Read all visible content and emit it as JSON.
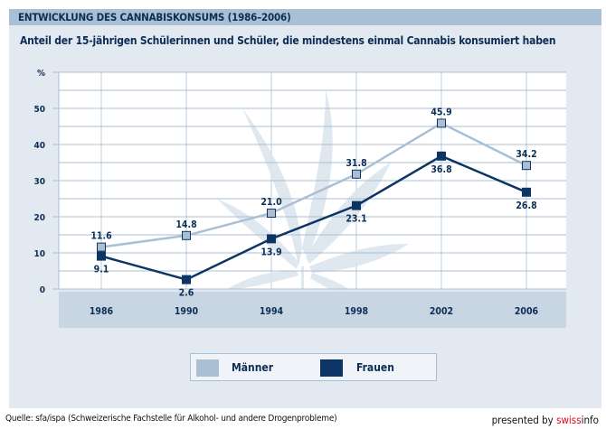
{
  "header": {
    "title": "ENTWICKLUNG DES CANNABISKONSUMS (1986–2006)",
    "subtitle": "Anteil der 15-jährigen Schülerinnen und Schüler, die mindestens einmal Cannabis konsumiert haben"
  },
  "chart_data": {
    "type": "line",
    "title": "ENTWICKLUNG DES CANNABISKONSUMS (1986–2006)",
    "subtitle": "Anteil der 15-jährigen Schülerinnen und Schüler, die mindestens einmal Cannabis konsumiert haben",
    "xlabel": "",
    "ylabel": "%",
    "categories": [
      "1986",
      "1990",
      "1994",
      "1998",
      "2002",
      "2006"
    ],
    "ylim": [
      0,
      60
    ],
    "yticks": [
      0,
      10,
      20,
      30,
      40,
      50
    ],
    "grid": true,
    "legend_position": "bottom-center",
    "series": [
      {
        "name": "Männer",
        "color": "#a9bfd4",
        "values": [
          11.6,
          14.8,
          21.0,
          31.8,
          45.9,
          34.2
        ],
        "labels": [
          "11.6",
          "14.8",
          "21.0",
          "31.8",
          "45.9",
          "34.2"
        ]
      },
      {
        "name": "Frauen",
        "color": "#0c3566",
        "values": [
          9.1,
          2.6,
          13.9,
          23.1,
          36.8,
          26.8
        ],
        "labels": [
          "9.1",
          "2.6",
          "13.9",
          "23.1",
          "36.8",
          "26.8"
        ]
      }
    ]
  },
  "legend": {
    "items": [
      {
        "label": "Männer",
        "color": "#a9bfd4"
      },
      {
        "label": "Frauen",
        "color": "#0c3566"
      }
    ]
  },
  "footer": {
    "source": "Quelle: sfa/ispa (Schweizerische Fachstelle für Alkohol- und andere Drogenprobleme)",
    "presented_prefix": "presented by ",
    "brand_red": "swiss",
    "brand_dark": "info"
  },
  "colors": {
    "header_bg": "#a9bfd4",
    "panel_bg": "#e2e9f1",
    "text_dark": "#0c2d55",
    "brand_red": "#e3001b"
  }
}
